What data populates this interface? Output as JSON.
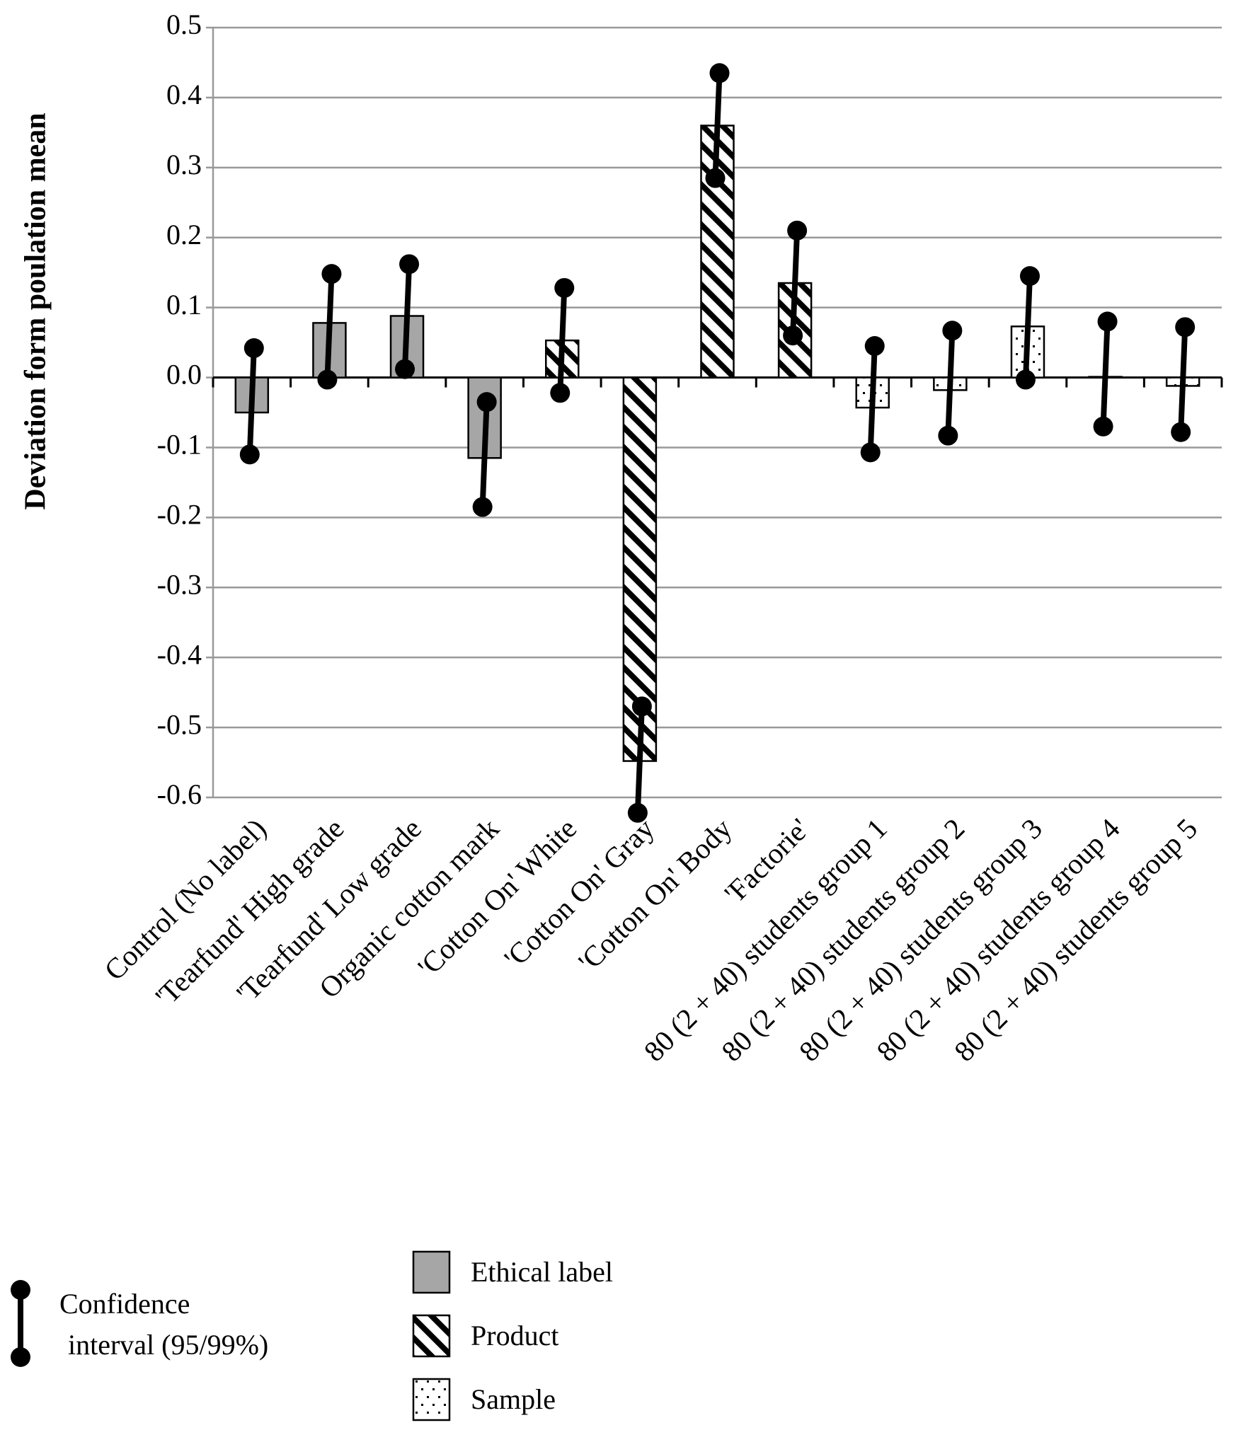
{
  "chart_data": {
    "type": "bar",
    "y_label": "Deviation form poulation mean",
    "categories": [
      "Control (No label)",
      "'Tearfund' High grade",
      "'Tearfund' Low grade",
      "Organic cotton mark",
      "'Cotton On' White",
      "'Cotton On'  Gray",
      "'Cotton On' Body",
      "'Factorie'",
      "80 (2 + 40) students group 1",
      "80 (2 + 40) students group 2",
      "80 (2 + 40) students group 3",
      "80 (2 + 40) students group 4",
      "80 (2 + 40) students group 5"
    ],
    "series": [
      {
        "name": "Ethical label",
        "color": "#a6a6a6",
        "pattern": "solid",
        "values": [
          -0.05,
          0.078,
          0.088,
          -0.115,
          null,
          null,
          null,
          null,
          null,
          null,
          null,
          null,
          null
        ],
        "ci_low": [
          -0.11,
          -0.003,
          0.012,
          -0.185,
          null,
          null,
          null,
          null,
          null,
          null,
          null,
          null,
          null
        ],
        "ci_high": [
          0.042,
          0.148,
          0.162,
          -0.035,
          null,
          null,
          null,
          null,
          null,
          null,
          null,
          null,
          null
        ]
      },
      {
        "name": "Product",
        "color": "#000000",
        "pattern": "hatch",
        "values": [
          null,
          null,
          null,
          null,
          0.053,
          -0.548,
          0.36,
          0.135,
          null,
          null,
          null,
          null,
          null
        ],
        "ci_low": [
          null,
          null,
          null,
          null,
          -0.022,
          -0.622,
          0.285,
          0.06,
          null,
          null,
          null,
          null,
          null
        ],
        "ci_high": [
          null,
          null,
          null,
          null,
          0.128,
          -0.47,
          0.435,
          0.21,
          null,
          null,
          null,
          null,
          null
        ]
      },
      {
        "name": "Sample",
        "color": "#000000",
        "pattern": "dots",
        "values": [
          null,
          null,
          null,
          null,
          null,
          null,
          null,
          null,
          -0.043,
          -0.018,
          0.073,
          0.001,
          -0.012
        ],
        "ci_low": [
          null,
          null,
          null,
          null,
          null,
          null,
          null,
          null,
          -0.107,
          -0.083,
          -0.003,
          -0.07,
          -0.078
        ],
        "ci_high": [
          null,
          null,
          null,
          null,
          null,
          null,
          null,
          null,
          0.045,
          0.067,
          0.145,
          0.08,
          0.072
        ]
      }
    ],
    "ci_legend": [
      "Confidence",
      "interval (95/99%)"
    ],
    "ylim": [
      -0.6,
      0.5
    ],
    "yticks": [
      -0.6,
      -0.5,
      -0.4,
      -0.3,
      -0.2,
      -0.1,
      {
        "value": 0,
        "label": "0.0"
      },
      0.1,
      0.2,
      0.3,
      0.4,
      0.5
    ],
    "grid": true
  }
}
